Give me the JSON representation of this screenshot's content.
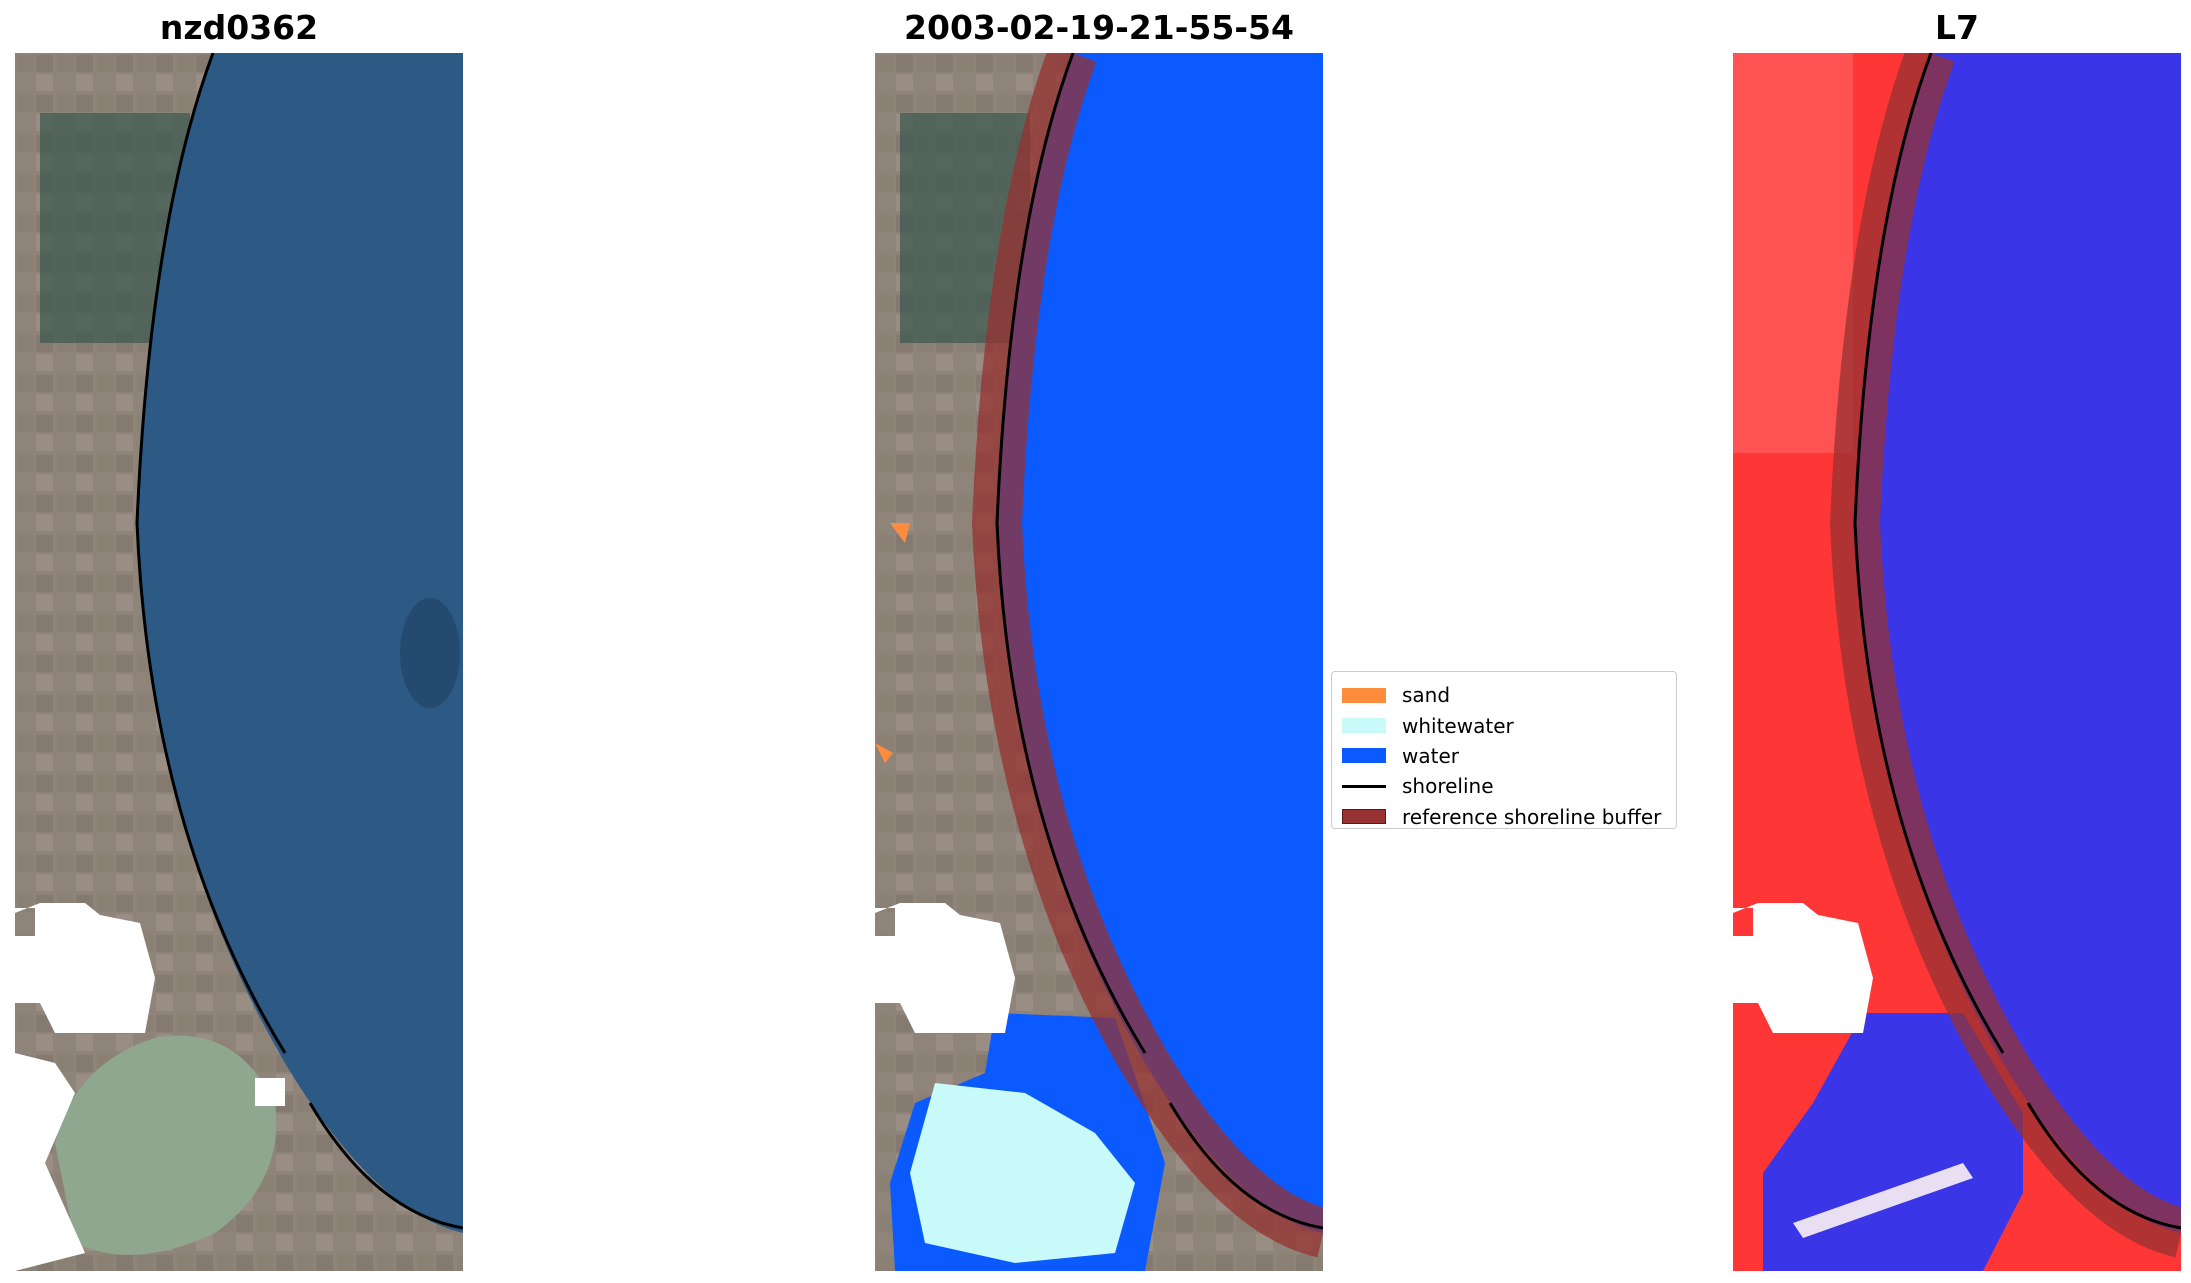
{
  "panels": [
    {
      "title": "nzd0362"
    },
    {
      "title": "2003-02-19-21-55-54"
    },
    {
      "title": "L7"
    }
  ],
  "legend": {
    "items": [
      {
        "label": "sand",
        "color": "#ff8c3c",
        "kind": "patch"
      },
      {
        "label": "whitewater",
        "color": "#c8fafa",
        "kind": "patch"
      },
      {
        "label": "water",
        "color": "#0a5aff",
        "kind": "patch"
      },
      {
        "label": "shoreline",
        "color": "#000000",
        "kind": "line"
      },
      {
        "label": "reference shoreline buffer",
        "color": "#963232",
        "kind": "patch"
      }
    ]
  },
  "colors": {
    "sea_rgb": "#2c5a85",
    "land_rgb": "#8f8479",
    "water_class": "#0a5aff",
    "whitewater_class": "#c8fafa",
    "sand_class": "#ff8c3c",
    "buffer": "#963232",
    "index_land": "#ff3636",
    "index_water": "#3a36e8",
    "shoreline": "#000000",
    "no_data": "#ffffff"
  }
}
